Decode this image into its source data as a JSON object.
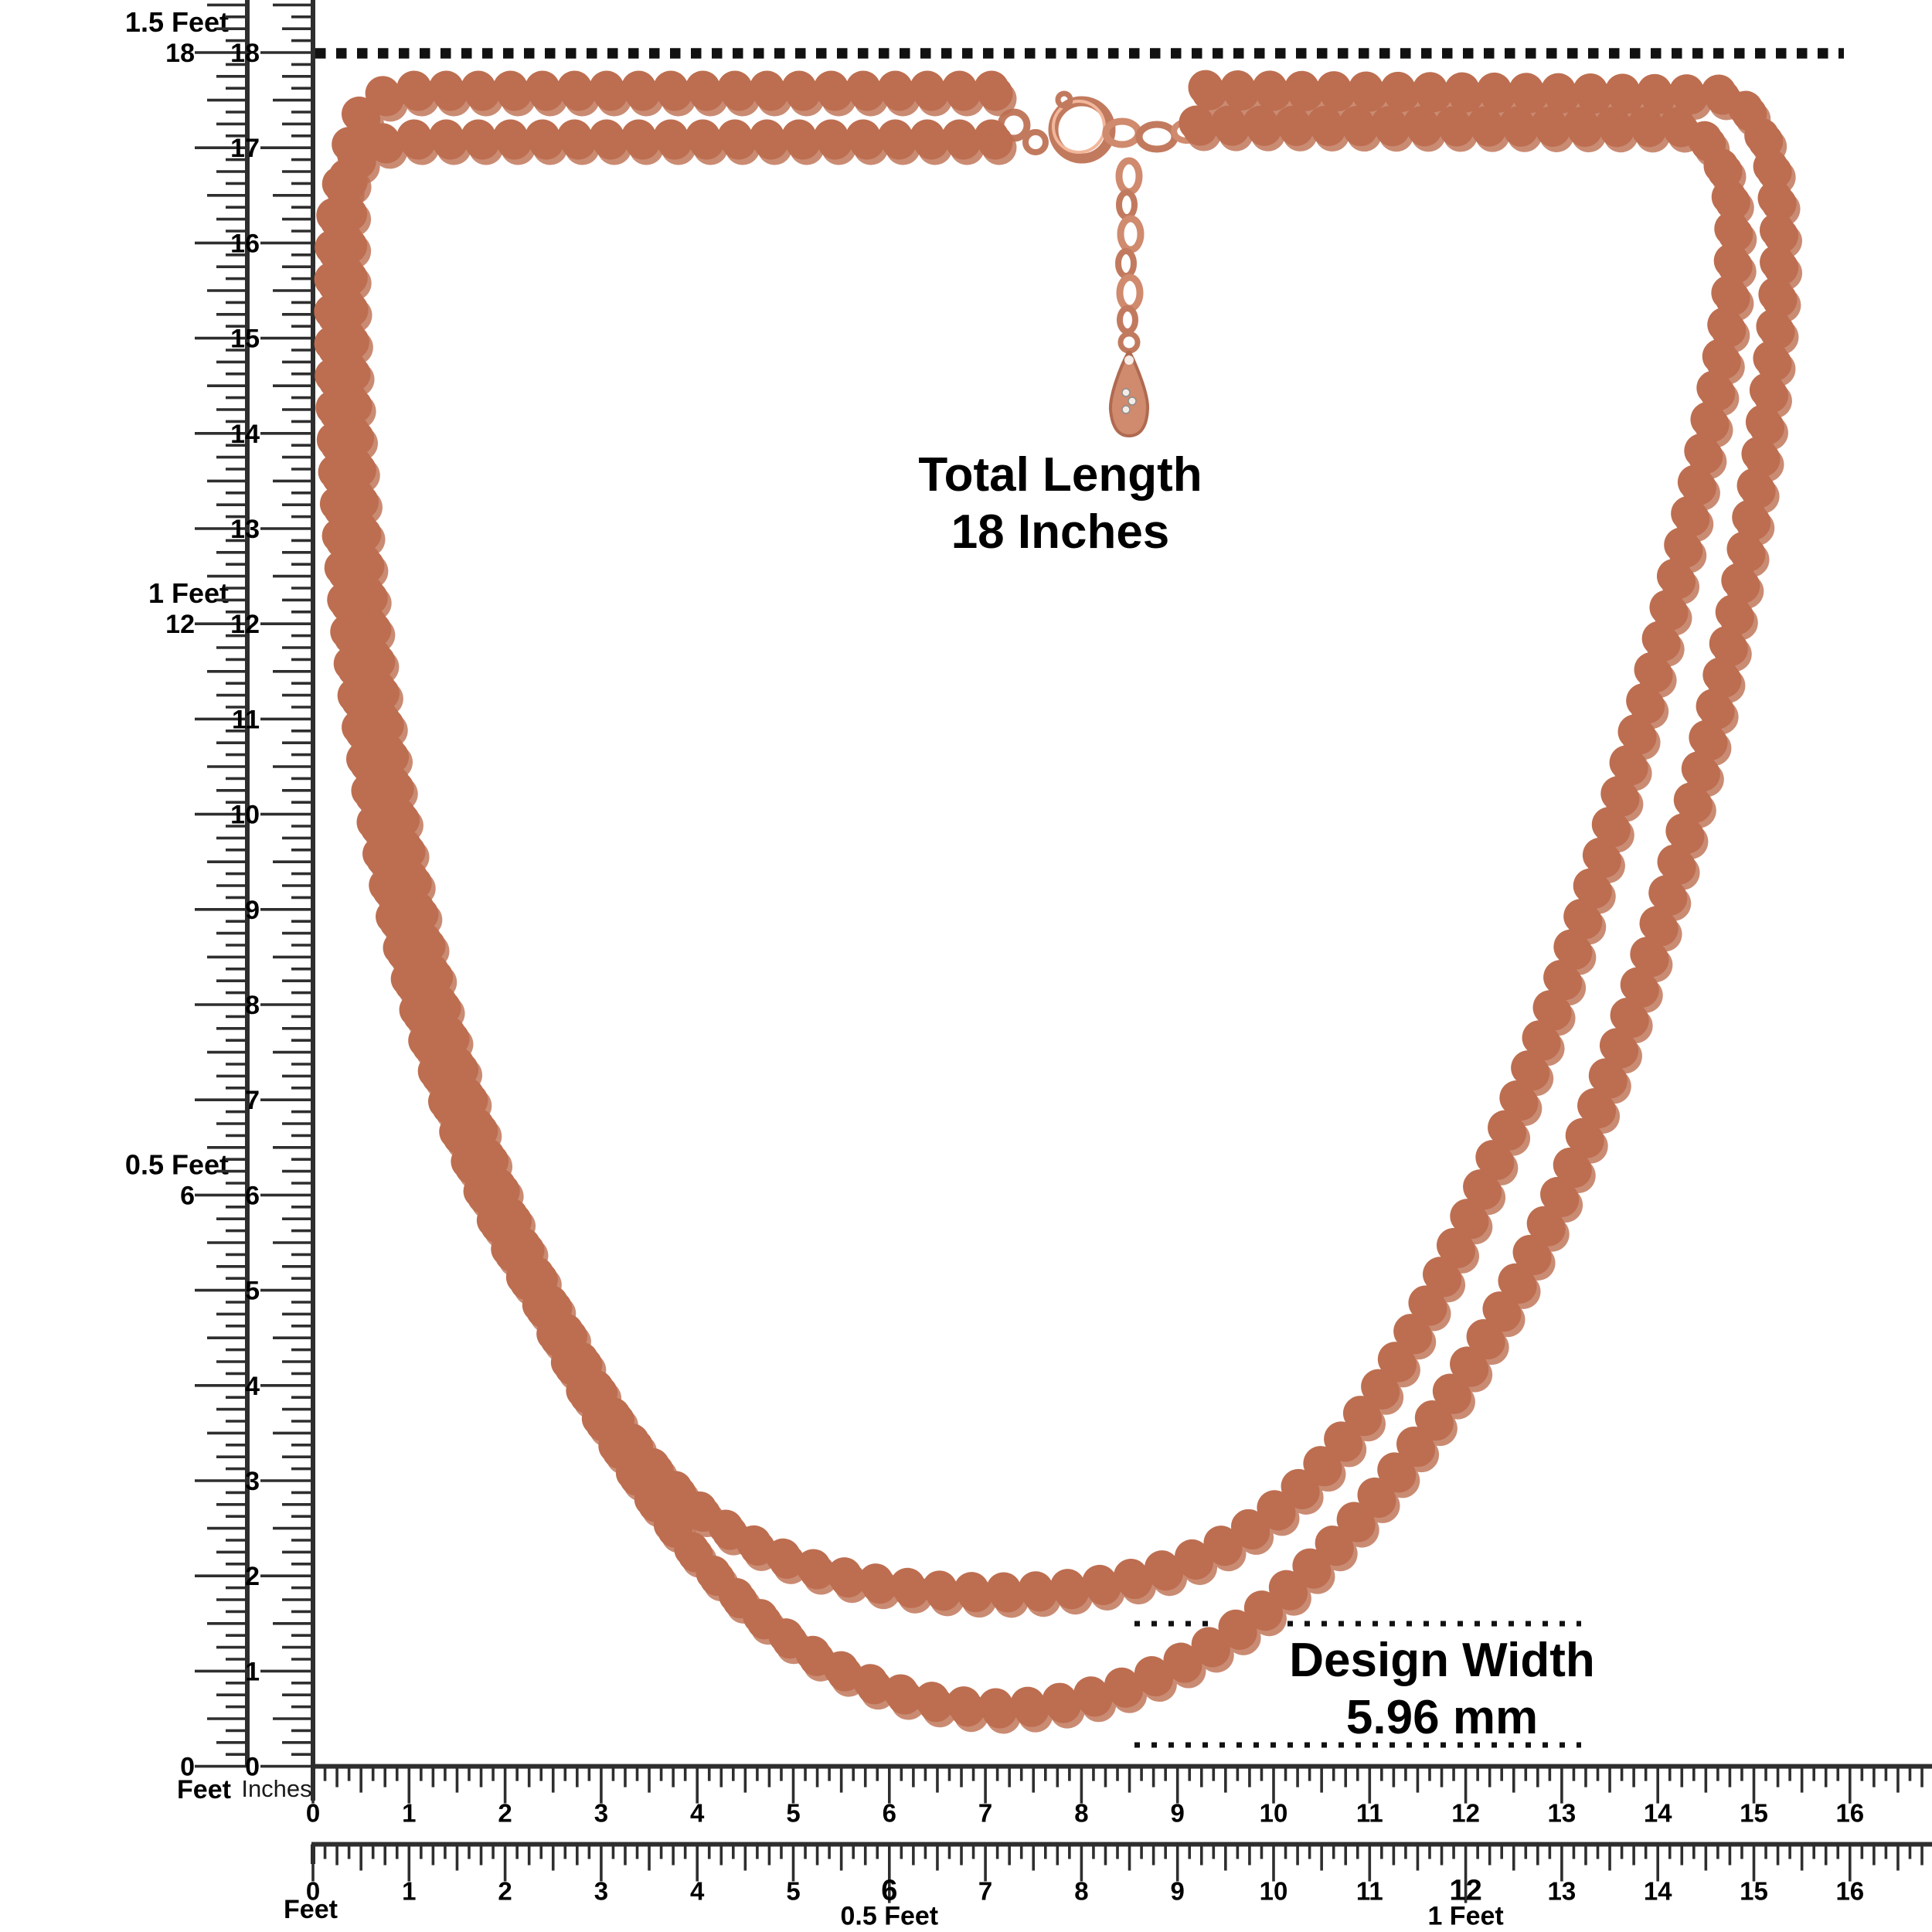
{
  "annotations": {
    "total_length_line1": "Total Length",
    "total_length_line2": "18 Inches",
    "design_width_line1": "Design Width",
    "design_width_line2": "5.96 mm"
  },
  "rulers": {
    "vertical_feet": {
      "unit_label": "Feet",
      "callouts": [
        {
          "inch": 18,
          "label": "1.5 Feet",
          "number": "18"
        },
        {
          "inch": 12,
          "label": "1 Feet",
          "number": "12"
        },
        {
          "inch": 6,
          "label": "0.5 Feet",
          "number": "6"
        },
        {
          "inch": 0,
          "label": "",
          "number": "0"
        }
      ]
    },
    "vertical_inches": {
      "unit_label": "Inches",
      "min": 0,
      "max": 18
    },
    "horizontal_inches": {
      "min": 0,
      "max": 16
    },
    "horizontal_feet": {
      "unit_label": "Feet",
      "min": 0,
      "max": 16,
      "callouts": [
        {
          "inch": 6,
          "label": "0.5 Feet"
        },
        {
          "inch": 12,
          "label": "1 Feet"
        }
      ]
    }
  },
  "colors": {
    "ruler_ink": "#2e2e2e",
    "dotted_line": "#111111",
    "text": "#000000",
    "bead_base": "#bd6e50",
    "bead_body": "#eca488",
    "bead_shade": "#cf7d5c",
    "bead_highlight": "#fbd3bd",
    "metal": "#d08a6e",
    "metal_dark": "#c27a5e",
    "metal_light": "#f2b79b",
    "crystal": "#f3ece6"
  }
}
